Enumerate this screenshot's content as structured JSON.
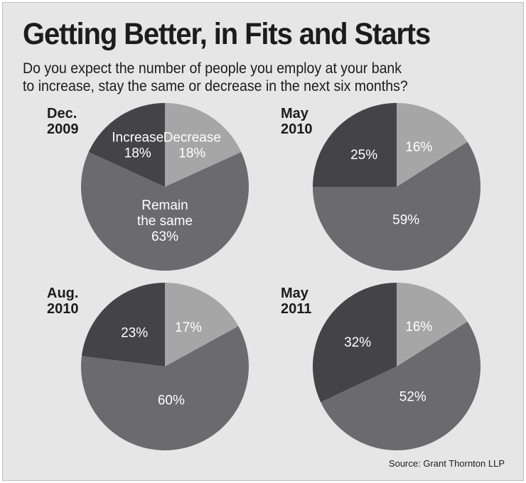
{
  "header": {
    "title": "Getting Better, in Fits and Starts",
    "subtitle_line1": "Do you expect the number of people you employ at your bank",
    "subtitle_line2": "to increase, stay the same or decrease in the next six months?"
  },
  "source": "Source: Grant Thornton LLP",
  "colors": {
    "decrease": "#a6a6a6",
    "remain": "#6b6b6d",
    "increase": "#444446",
    "background": "#e6e6e6"
  },
  "chart_data": [
    {
      "type": "pie",
      "period_line1": "Dec.",
      "period_line2": "2009",
      "categories": [
        "Decrease",
        "Remain the same",
        "Increase"
      ],
      "values": [
        18,
        63,
        18
      ],
      "labels": [
        {
          "key": "decrease",
          "lines": [
            "Decrease",
            "18%"
          ]
        },
        {
          "key": "remain",
          "lines": [
            "Remain",
            "the same",
            "63%"
          ]
        },
        {
          "key": "increase",
          "lines": [
            "Increase",
            "18%"
          ]
        }
      ]
    },
    {
      "type": "pie",
      "period_line1": "May",
      "period_line2": "2010",
      "categories": [
        "Decrease",
        "Remain the same",
        "Increase"
      ],
      "values": [
        16,
        59,
        25
      ],
      "labels": [
        {
          "key": "decrease",
          "lines": [
            "16%"
          ]
        },
        {
          "key": "remain",
          "lines": [
            "59%"
          ]
        },
        {
          "key": "increase",
          "lines": [
            "25%"
          ]
        }
      ]
    },
    {
      "type": "pie",
      "period_line1": "Aug.",
      "period_line2": "2010",
      "categories": [
        "Decrease",
        "Remain the same",
        "Increase"
      ],
      "values": [
        17,
        60,
        23
      ],
      "labels": [
        {
          "key": "decrease",
          "lines": [
            "17%"
          ]
        },
        {
          "key": "remain",
          "lines": [
            "60%"
          ]
        },
        {
          "key": "increase",
          "lines": [
            "23%"
          ]
        }
      ]
    },
    {
      "type": "pie",
      "period_line1": "May",
      "period_line2": "2011",
      "categories": [
        "Decrease",
        "Remain the same",
        "Increase"
      ],
      "values": [
        16,
        52,
        32
      ],
      "labels": [
        {
          "key": "decrease",
          "lines": [
            "16%"
          ]
        },
        {
          "key": "remain",
          "lines": [
            "52%"
          ]
        },
        {
          "key": "increase",
          "lines": [
            "32%"
          ]
        }
      ]
    }
  ]
}
